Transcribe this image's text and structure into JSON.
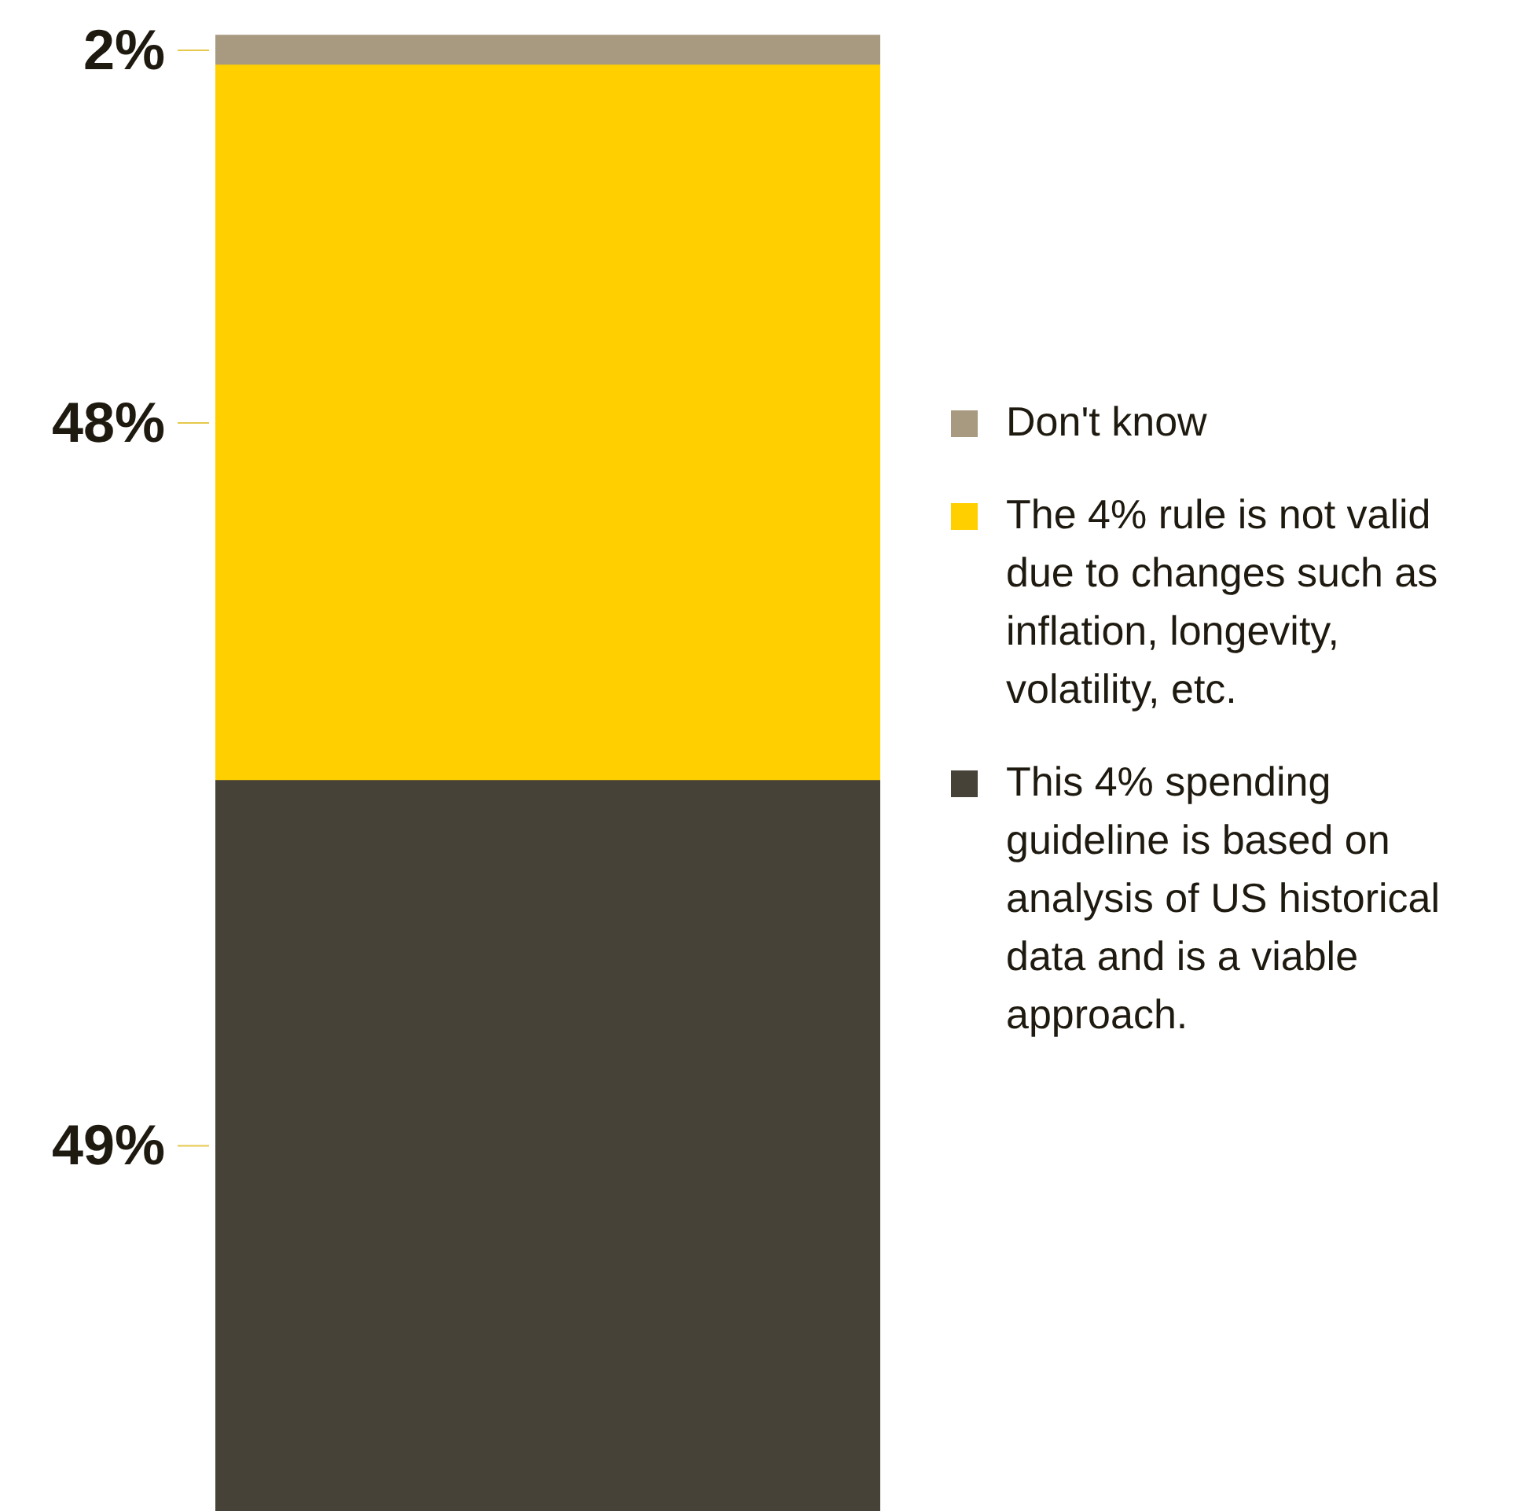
{
  "chart_data": {
    "type": "bar",
    "stacked": true,
    "categories": [
      null
    ],
    "series": [
      {
        "name": "This 4% spending guideline is based on analysis of US historical data and is a viable approach.",
        "color": "#464237",
        "values": [
          49
        ],
        "value_labels": [
          "49%"
        ]
      },
      {
        "name": "The 4% rule is not valid due to changes such as inflation, longevity, volatility, etc.",
        "color": "#ffcf00",
        "values": [
          48
        ],
        "value_labels": [
          "48%"
        ]
      },
      {
        "name": "Don't know",
        "color": "#a89a80",
        "values": [
          2
        ],
        "value_labels": [
          "2%"
        ]
      }
    ],
    "legend": "right"
  }
}
